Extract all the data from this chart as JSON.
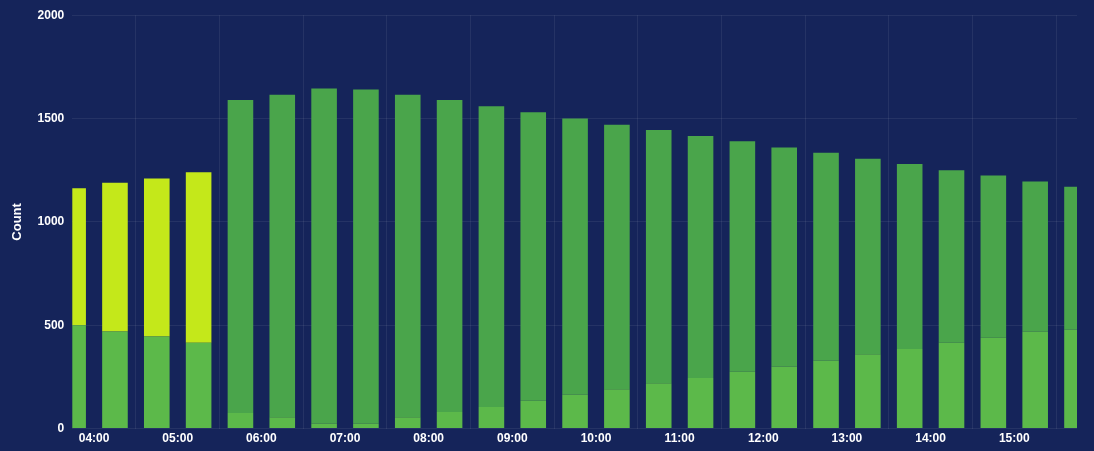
{
  "chart_data": {
    "type": "bar",
    "stacked": true,
    "ylabel": "Count",
    "grid": true,
    "x": [
      3.75,
      4.25,
      4.75,
      5.25,
      5.75,
      6.25,
      6.75,
      7.25,
      7.75,
      8.25,
      8.75,
      9.25,
      9.75,
      10.25,
      10.75,
      11.25,
      11.75,
      12.25,
      12.75,
      13.25,
      13.75,
      14.25,
      14.75,
      15.25,
      15.75
    ],
    "xlim": [
      3.74,
      15.75
    ],
    "xticks": [
      {
        "value": 4,
        "label": "04:00"
      },
      {
        "value": 5,
        "label": "05:00"
      },
      {
        "value": 6,
        "label": "06:00"
      },
      {
        "value": 7,
        "label": "07:00"
      },
      {
        "value": 8,
        "label": "08:00"
      },
      {
        "value": 9,
        "label": "09:00"
      },
      {
        "value": 10,
        "label": "10:00"
      },
      {
        "value": 11,
        "label": "11:00"
      },
      {
        "value": 12,
        "label": "12:00"
      },
      {
        "value": 13,
        "label": "13:00"
      },
      {
        "value": 14,
        "label": "14:00"
      },
      {
        "value": 15,
        "label": "15:00"
      }
    ],
    "ylim": [
      0,
      2000
    ],
    "yticks": [
      0,
      500,
      1000,
      1500,
      2000
    ],
    "series": [
      {
        "color": "#5cb94a",
        "values": [
          500,
          470,
          445,
          415,
          75,
          55,
          25,
          25,
          55,
          80,
          105,
          135,
          165,
          190,
          220,
          245,
          275,
          300,
          330,
          360,
          385,
          415,
          440,
          470,
          480
        ]
      },
      {
        "colors": [
          "#c4e81a",
          "#c4e81a",
          "#c4e81a",
          "#c4e81a",
          "#4aa54b",
          "#4aa54b",
          "#4aa54b",
          "#4aa54b",
          "#4aa54b",
          "#4aa54b",
          "#4aa54b",
          "#4aa54b",
          "#4aa54b",
          "#4aa54b",
          "#4aa54b",
          "#4aa54b",
          "#4aa54b",
          "#4aa54b",
          "#4aa54b",
          "#4aa54b",
          "#4aa54b",
          "#4aa54b",
          "#4aa54b",
          "#4aa54b",
          "#4aa54b"
        ],
        "values": [
          663,
          720,
          765,
          825,
          1515,
          1560,
          1620,
          1615,
          1560,
          1510,
          1455,
          1395,
          1335,
          1280,
          1225,
          1170,
          1115,
          1060,
          1005,
          945,
          895,
          835,
          785,
          725,
          690
        ]
      }
    ]
  }
}
